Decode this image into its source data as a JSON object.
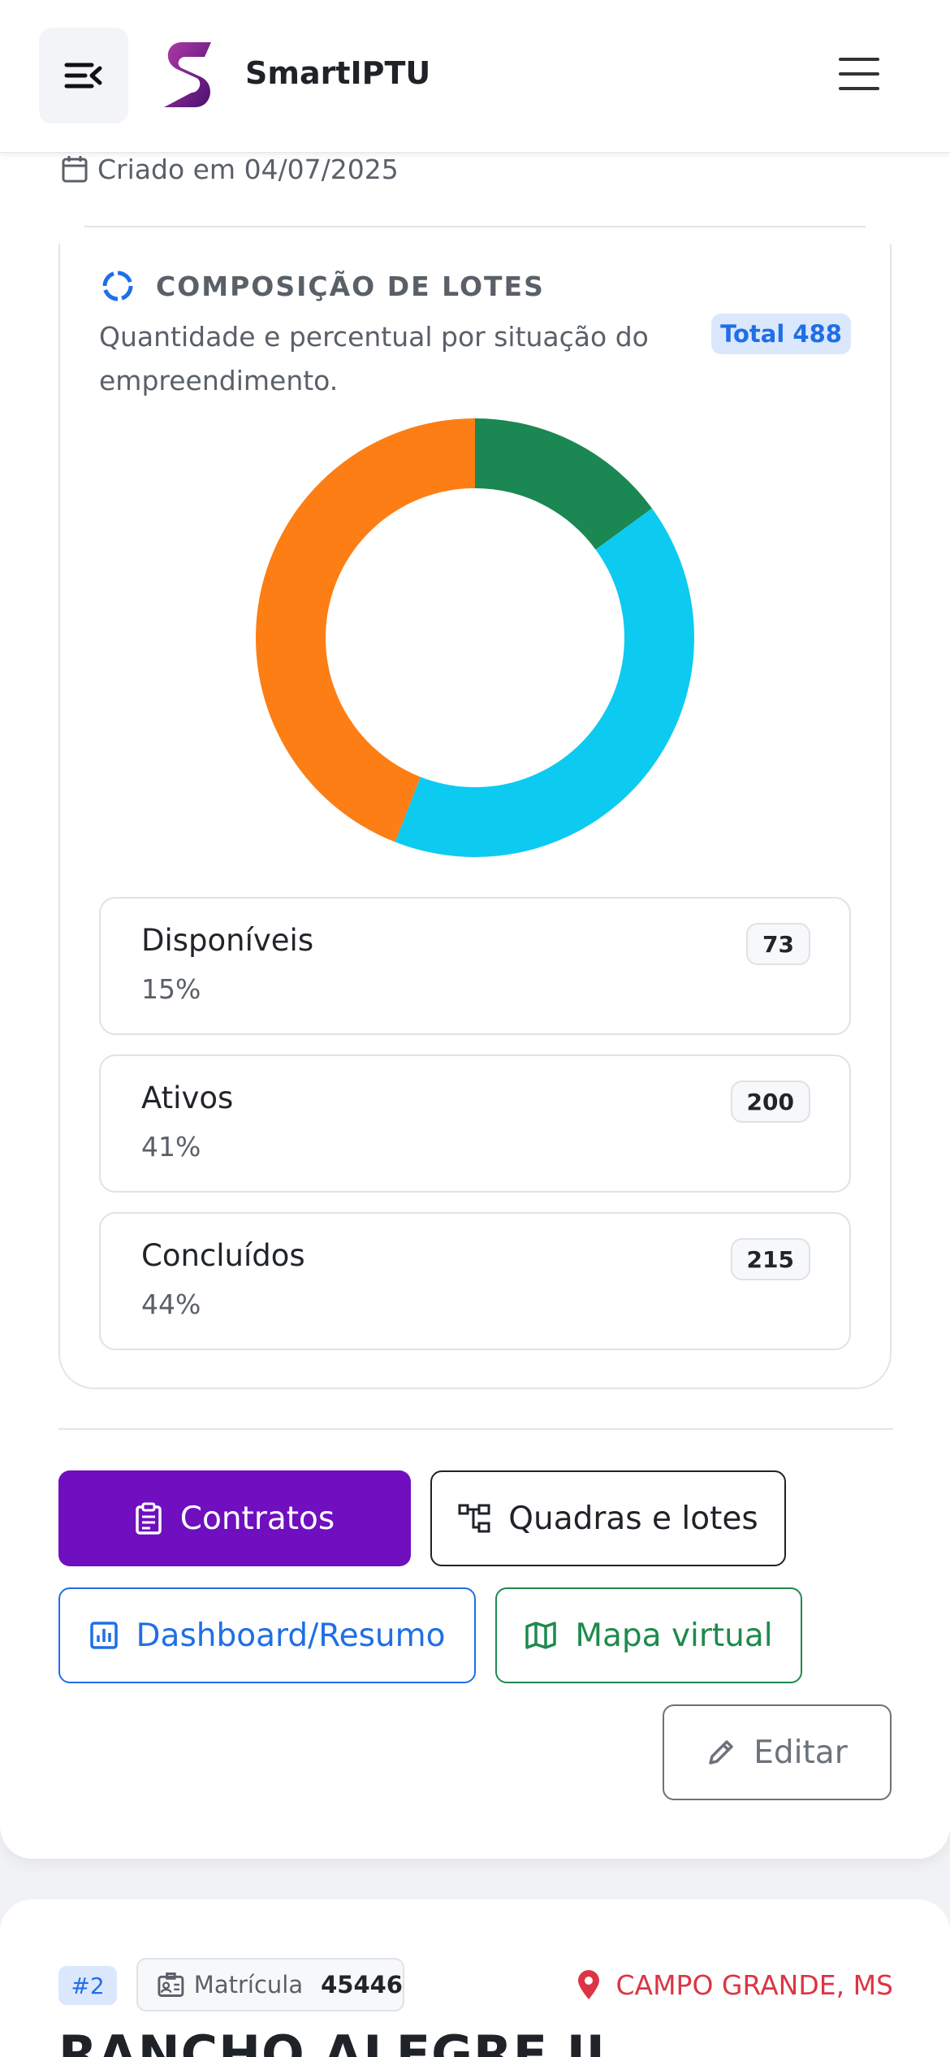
{
  "header": {
    "app_title": "SmartIPTU",
    "collapse_icon": "menu-collapse-icon",
    "menu_icon": "hamburger-icon"
  },
  "created": {
    "text": "Criado em 04/07/2025",
    "icon": "calendar-icon"
  },
  "composition": {
    "title": "COMPOSIÇÃO DE LOTES",
    "subtitle": "Quantidade e percentual por situação do empreendimento.",
    "total_label": "Total 488",
    "icon": "loading-circle-icon"
  },
  "chart_data": {
    "type": "pie",
    "style": "donut",
    "total": 488,
    "categories": [
      "Disponíveis",
      "Ativos",
      "Concluídos"
    ],
    "values": [
      73,
      200,
      215
    ],
    "percentages": [
      "15%",
      "41%",
      "44%"
    ],
    "colors": [
      "#1b8753",
      "#0dcaf0",
      "#fd7e14"
    ]
  },
  "legend": [
    {
      "name": "Disponíveis",
      "percent": "15%",
      "count": "73"
    },
    {
      "name": "Ativos",
      "percent": "41%",
      "count": "200"
    },
    {
      "name": "Concluídos",
      "percent": "44%",
      "count": "215"
    }
  ],
  "actions": {
    "contratos": "Contratos",
    "quadras": "Quadras e lotes",
    "dashboard": "Dashboard/Resumo",
    "mapa": "Mapa virtual",
    "editar": "Editar"
  },
  "colors": {
    "primary": "#6f0fbf",
    "info": "#1f6fe5",
    "success": "#1d8a4c",
    "danger": "#dc3545"
  },
  "next_item": {
    "id": "#2",
    "matricula_label": "Matrícula",
    "matricula_value": "45446",
    "location": "CAMPO GRANDE, MS",
    "title": "RANCHO ALEGRE II"
  }
}
